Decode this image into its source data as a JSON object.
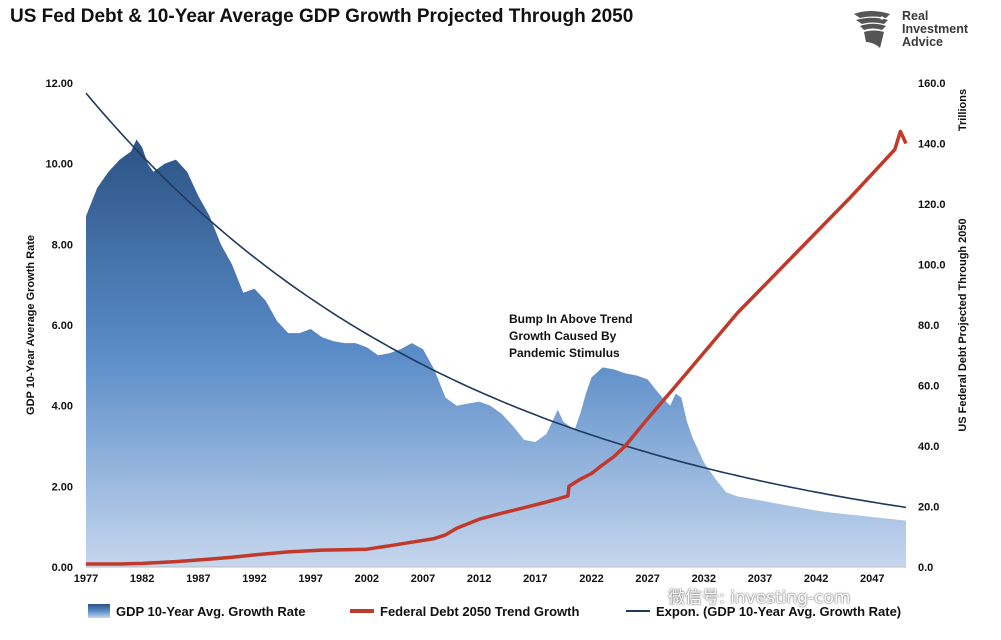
{
  "title": "US Fed Debt & 10-Year Average GDP Growth Projected Through 2050",
  "logo": {
    "line1": "Real",
    "line2": "Investment",
    "line3": "Advice",
    "icon": "eagle-icon"
  },
  "watermark": "微信号: investing-com",
  "colors": {
    "area_top": "#2b5284",
    "area_mid": "#5a8cc8",
    "area_bottom": "#c6d7ee",
    "debt": "#c0392b",
    "trend": "#1f3a5f"
  },
  "chart_data": {
    "type": "area",
    "x_range": [
      1977,
      2050
    ],
    "x_ticks": [
      "1977",
      "1982",
      "1987",
      "1992",
      "1997",
      "2002",
      "2007",
      "2012",
      "2017",
      "2022",
      "2027",
      "2032",
      "2037",
      "2042",
      "2047"
    ],
    "y_left": {
      "label": "GDP 10-Year Average Growth Rate",
      "range": [
        0,
        12
      ],
      "ticks": [
        "0.00",
        "2.00",
        "4.00",
        "6.00",
        "8.00",
        "10.00",
        "12.00"
      ]
    },
    "y_right": {
      "label": "US Federal Debt Projected Through 2050",
      "unit_label": "Trillions",
      "range": [
        0,
        160
      ],
      "ticks": [
        "0.0",
        "20.0",
        "40.0",
        "60.0",
        "80.0",
        "100.0",
        "120.0",
        "140.0",
        "160.0"
      ]
    },
    "annotation": {
      "lines": [
        "Bump In Above Trend",
        "Growth Caused By",
        "Pandemic Stimulus"
      ],
      "x": 2020,
      "y": 6.0
    },
    "legend": [
      "GDP 10-Year Avg. Growth Rate",
      "Federal Debt 2050 Trend Growth",
      "Expon. (GDP 10-Year Avg. Growth Rate)"
    ],
    "series": [
      {
        "name": "GDP 10-Year Avg. Growth Rate",
        "axis": "left",
        "kind": "area",
        "x": [
          1977,
          1978,
          1979,
          1980,
          1981,
          1981.5,
          1982,
          1982.5,
          1983,
          1984,
          1985,
          1986,
          1987,
          1988,
          1989,
          1990,
          1991,
          1992,
          1993,
          1994,
          1995,
          1996,
          1997,
          1998,
          1999,
          2000,
          2001,
          2002,
          2003,
          2004,
          2005,
          2006,
          2007,
          2008,
          2009,
          2010,
          2011,
          2012,
          2013,
          2014,
          2015,
          2016,
          2017,
          2018,
          2019,
          2019.5,
          2020,
          2020.5,
          2021,
          2021.5,
          2022,
          2023,
          2024,
          2025,
          2026,
          2027,
          2028,
          2029,
          2029.5,
          2030,
          2030.5,
          2031,
          2032,
          2033,
          2034,
          2035,
          2036,
          2037,
          2038,
          2039,
          2040,
          2041,
          2042,
          2043,
          2044,
          2045,
          2046,
          2047,
          2048,
          2049,
          2050
        ],
        "values": [
          8.7,
          9.4,
          9.8,
          10.1,
          10.3,
          10.6,
          10.4,
          10.0,
          9.8,
          10.0,
          10.1,
          9.8,
          9.2,
          8.7,
          8.0,
          7.5,
          6.8,
          6.9,
          6.6,
          6.1,
          5.8,
          5.8,
          5.9,
          5.7,
          5.6,
          5.55,
          5.55,
          5.45,
          5.25,
          5.3,
          5.4,
          5.55,
          5.4,
          4.9,
          4.2,
          4.0,
          4.05,
          4.1,
          4.0,
          3.8,
          3.5,
          3.15,
          3.1,
          3.3,
          3.9,
          3.6,
          3.5,
          3.4,
          3.8,
          4.3,
          4.7,
          4.95,
          4.9,
          4.8,
          4.75,
          4.65,
          4.3,
          4.0,
          4.3,
          4.2,
          3.6,
          3.2,
          2.6,
          2.2,
          1.85,
          1.75,
          1.7,
          1.65,
          1.6,
          1.55,
          1.5,
          1.45,
          1.4,
          1.36,
          1.33,
          1.3,
          1.27,
          1.24,
          1.21,
          1.18,
          1.15
        ]
      },
      {
        "name": "Federal Debt 2050 Trend Growth",
        "axis": "right",
        "kind": "line",
        "x": [
          1977,
          1980,
          1982,
          1985,
          1988,
          1990,
          1992,
          1995,
          1998,
          2000,
          2002,
          2004,
          2006,
          2008,
          2009,
          2010,
          2012,
          2014,
          2016,
          2018,
          2019,
          2019.9,
          2020,
          2021,
          2022,
          2023,
          2024,
          2025,
          2026,
          2027,
          2030,
          2035,
          2040,
          2045,
          2049,
          2049.5,
          2050
        ],
        "values": [
          1.0,
          1.0,
          1.2,
          1.8,
          2.6,
          3.2,
          4.0,
          5.0,
          5.6,
          5.7,
          5.9,
          7.0,
          8.2,
          9.4,
          10.6,
          12.8,
          15.8,
          17.8,
          19.6,
          21.5,
          22.5,
          23.5,
          26.7,
          29.0,
          30.9,
          33.8,
          36.5,
          40.0,
          44.5,
          49.0,
          62.0,
          84.0,
          103.0,
          122.0,
          138.0,
          144.0,
          140.0
        ]
      },
      {
        "name": "Expon. (GDP 10-Year Avg. Growth Rate)",
        "axis": "left",
        "kind": "trendline",
        "a": 11.75,
        "b": -0.0284
      }
    ]
  }
}
